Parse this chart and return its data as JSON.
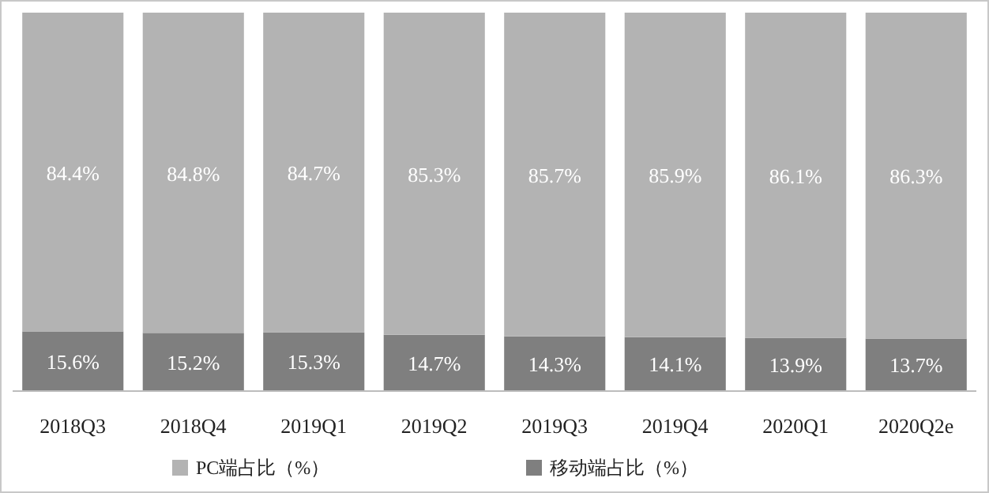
{
  "chart_data": {
    "type": "bar",
    "stacked": true,
    "legend": "bottom",
    "categories": [
      "2018Q3",
      "2018Q4",
      "2019Q1",
      "2019Q2",
      "2019Q3",
      "2019Q4",
      "2020Q1",
      "2020Q2e"
    ],
    "series": [
      {
        "name": "移动端占比（%）",
        "color": "#7f7f7f",
        "values": [
          15.6,
          15.2,
          15.3,
          14.7,
          14.3,
          14.1,
          13.9,
          13.7
        ],
        "value_labels": [
          "15.6%",
          "15.2%",
          "15.3%",
          "14.7%",
          "14.3%",
          "14.1%",
          "13.9%",
          "13.7%"
        ]
      },
      {
        "name": "PC端占比（%）",
        "color": "#b3b3b3",
        "values": [
          84.4,
          84.8,
          84.7,
          85.3,
          85.7,
          85.9,
          86.1,
          86.3
        ],
        "value_labels": [
          "84.4%",
          "84.8%",
          "84.7%",
          "85.3%",
          "85.7%",
          "85.9%",
          "86.1%",
          "86.3%"
        ]
      }
    ]
  }
}
